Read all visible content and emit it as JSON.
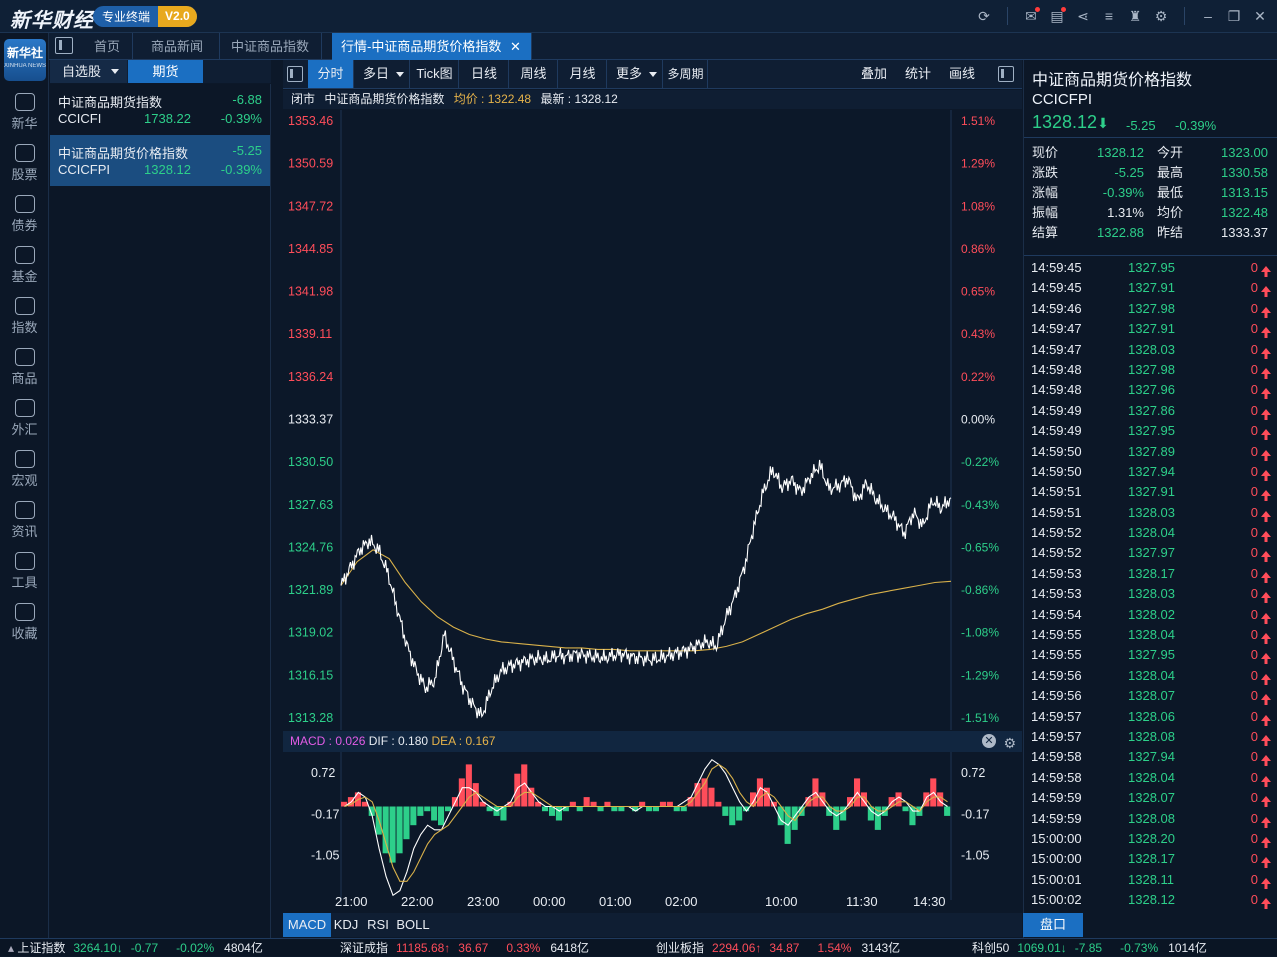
{
  "app": {
    "logo": "新华财经",
    "edition": "专业终端",
    "version": "V2.0"
  },
  "nav": [
    {
      "label": "新华",
      "icon": "xinhua-icon"
    },
    {
      "label": "股票",
      "icon": "stock-chart-icon"
    },
    {
      "label": "债券",
      "icon": "bond-icon"
    },
    {
      "label": "基金",
      "icon": "fund-icon"
    },
    {
      "label": "指数",
      "icon": "index-icon"
    },
    {
      "label": "商品",
      "icon": "commodity-icon"
    },
    {
      "label": "外汇",
      "icon": "dollar-icon"
    },
    {
      "label": "宏观",
      "icon": "macro-icon"
    },
    {
      "label": "资讯",
      "icon": "news-icon"
    },
    {
      "label": "工具",
      "icon": "tool-icon"
    },
    {
      "label": "收藏",
      "icon": "favorite-icon"
    }
  ],
  "nav_logo": {
    "line1": "新华社",
    "line2": "XINHUA NEWS"
  },
  "tabs": [
    "首页",
    "商品新闻",
    "中证商品指数",
    "行情-中证商品期货价格指数"
  ],
  "watchlist_tabs": [
    "自选股",
    "期货"
  ],
  "watchlist": [
    {
      "name": "中证商品期货指数",
      "change": "-6.88",
      "code": "CCICFI",
      "price": "1738.22",
      "pct": "-0.39%"
    },
    {
      "name": "中证商品期货价格指数",
      "change": "-5.25",
      "code": "CCICFPI",
      "price": "1328.12",
      "pct": "-0.39%"
    }
  ],
  "chart_toolbar": {
    "buttons": [
      "分时",
      "多日",
      "Tick图",
      "日线",
      "周线",
      "月线",
      "更多",
      "多周期"
    ],
    "right": [
      "叠加",
      "统计",
      "画线"
    ]
  },
  "chart_info": {
    "status": "闭市",
    "name": "中证商品期货价格指数",
    "avg": "均价 : 1322.48",
    "last": "最新 : 1328.12"
  },
  "macd_info": {
    "macd": "MACD : 0.026",
    "dif": "DIF : 0.180",
    "dea": "DEA : 0.167"
  },
  "indicator_tabs": [
    "MACD",
    "KDJ",
    "RSI",
    "BOLL"
  ],
  "chart_data": {
    "type": "line",
    "prev_close": 1333.37,
    "ylim": [
      1313.28,
      1353.46
    ],
    "y_ticks": [
      "1353.46",
      "1350.59",
      "1347.72",
      "1344.85",
      "1341.98",
      "1339.11",
      "1336.24",
      "1333.37",
      "1330.50",
      "1327.63",
      "1324.76",
      "1321.89",
      "1319.02",
      "1316.15",
      "1313.28"
    ],
    "pct_ticks": [
      "1.51%",
      "1.29%",
      "1.08%",
      "0.86%",
      "0.65%",
      "0.43%",
      "0.22%",
      "0.00%",
      "-0.22%",
      "-0.43%",
      "-0.65%",
      "-0.86%",
      "-1.08%",
      "-1.29%",
      "-1.51%"
    ],
    "x_ticks": [
      "21:00",
      "22:00",
      "23:00",
      "00:00",
      "01:00",
      "02:00",
      "10:00",
      "11:30",
      "14:30"
    ],
    "series": [
      {
        "name": "price",
        "color": "#ffffff",
        "values": [
          1322.2,
          1323.4,
          1324.6,
          1325.2,
          1324.6,
          1323.0,
          1320.6,
          1318.2,
          1316.5,
          1315.3,
          1315.8,
          1318.9,
          1317.1,
          1315.4,
          1314.2,
          1313.4,
          1315.2,
          1316.4,
          1316.8,
          1317.0,
          1317.2,
          1317.3,
          1317.2,
          1317.5,
          1317.4,
          1317.6,
          1317.5,
          1317.4,
          1317.3,
          1317.5,
          1317.6,
          1317.4,
          1317.3,
          1317.2,
          1317.3,
          1317.5,
          1317.7,
          1317.9,
          1318.2,
          1318.4,
          1318.1,
          1320.0,
          1321.5,
          1323.5,
          1326.2,
          1328.5,
          1330.0,
          1328.8,
          1329.3,
          1328.5,
          1329.5,
          1330.3,
          1328.7,
          1328.9,
          1329.4,
          1327.9,
          1329.1,
          1328.0,
          1327.3,
          1326.7,
          1325.7,
          1327.1,
          1326.2,
          1327.9,
          1327.4,
          1328.1
        ]
      },
      {
        "name": "average",
        "color": "#d9b14a",
        "values": [
          1322.2,
          1323.8,
          1324.6,
          1324.0,
          1322.4,
          1321.1,
          1320.1,
          1319.4,
          1318.9,
          1318.6,
          1318.4,
          1318.3,
          1318.2,
          1318.1,
          1318.0,
          1318.0,
          1317.9,
          1317.9,
          1317.8,
          1317.8,
          1317.8,
          1317.8,
          1317.8,
          1317.9,
          1318.1,
          1318.4,
          1318.9,
          1319.4,
          1319.9,
          1320.3,
          1320.6,
          1321.0,
          1321.3,
          1321.6,
          1321.8,
          1322.0,
          1322.2,
          1322.4,
          1322.48
        ]
      }
    ],
    "macd": {
      "y_ticks": [
        "0.72",
        "-0.17",
        "-1.05"
      ],
      "hist": [
        0.1,
        0.2,
        0.3,
        0.1,
        -0.2,
        -0.6,
        -1.0,
        -1.2,
        -1.0,
        -0.7,
        -0.4,
        -0.2,
        -0.1,
        -0.3,
        -0.4,
        -0.1,
        0.2,
        0.6,
        0.9,
        0.5,
        0.1,
        -0.1,
        -0.2,
        -0.3,
        0.1,
        0.7,
        0.9,
        0.4,
        0.1,
        -0.1,
        -0.2,
        -0.3,
        -0.1,
        0.1,
        -0.1,
        0.2,
        0.1,
        -0.1,
        0.1,
        -0.1,
        -0.1,
        0.0,
        -0.1,
        0.1,
        -0.1,
        -0.1,
        0.1,
        0.1,
        -0.1,
        -0.1,
        0.2,
        0.5,
        0.6,
        0.4,
        0.1,
        -0.2,
        -0.4,
        -0.3,
        -0.1,
        0.3,
        0.6,
        0.4,
        0.1,
        -0.4,
        -0.8,
        -0.5,
        -0.2,
        0.2,
        0.6,
        0.3,
        -0.2,
        -0.5,
        -0.3,
        0.2,
        0.6,
        0.3,
        -0.3,
        -0.5,
        -0.2,
        0.2,
        0.3,
        -0.1,
        -0.4,
        -0.2,
        0.3,
        0.6,
        0.3,
        -0.2
      ],
      "dif": [
        0.0,
        0.1,
        0.3,
        0.2,
        -0.2,
        -0.9,
        -1.5,
        -1.9,
        -1.8,
        -1.4,
        -0.9,
        -0.6,
        -0.4,
        -0.5,
        -0.5,
        -0.2,
        0.1,
        0.4,
        0.4,
        0.3,
        0.1,
        0.0,
        -0.1,
        0.0,
        0.1,
        0.4,
        0.5,
        0.3,
        0.1,
        0.0,
        0.0,
        -0.1,
        0.0,
        0.0,
        0.0,
        0.0,
        0.0,
        0.0,
        0.0,
        0.0,
        0.0,
        0.0,
        -0.1,
        0.0,
        0.0,
        0.0,
        0.0,
        0.0,
        0.0,
        0.1,
        0.2,
        0.5,
        0.8,
        1.0,
        0.9,
        0.7,
        0.4,
        0.1,
        -0.1,
        0.1,
        0.4,
        0.3,
        0.0,
        -0.3,
        -0.4,
        -0.2,
        0.0,
        0.2,
        0.3,
        0.1,
        -0.1,
        -0.2,
        -0.1,
        0.1,
        0.3,
        0.1,
        -0.1,
        -0.2,
        -0.1,
        0.1,
        0.2,
        0.1,
        -0.1,
        -0.1,
        0.2,
        0.3,
        0.1,
        0.0
      ],
      "dea": [
        0.0,
        0.05,
        0.15,
        0.2,
        0.1,
        -0.3,
        -0.8,
        -1.3,
        -1.6,
        -1.6,
        -1.4,
        -1.1,
        -0.8,
        -0.6,
        -0.5,
        -0.4,
        -0.2,
        0.0,
        0.2,
        0.3,
        0.2,
        0.1,
        0.0,
        0.0,
        0.0,
        0.2,
        0.3,
        0.3,
        0.2,
        0.1,
        0.0,
        0.0,
        0.0,
        0.0,
        0.0,
        0.0,
        0.0,
        0.0,
        0.0,
        0.0,
        0.0,
        0.0,
        0.0,
        0.0,
        0.0,
        0.0,
        0.0,
        0.0,
        0.0,
        0.0,
        0.1,
        0.3,
        0.5,
        0.8,
        0.9,
        0.8,
        0.6,
        0.3,
        0.1,
        0.0,
        0.2,
        0.3,
        0.2,
        0.0,
        -0.2,
        -0.3,
        -0.1,
        0.1,
        0.2,
        0.2,
        0.0,
        -0.1,
        -0.1,
        0.0,
        0.2,
        0.2,
        0.0,
        -0.1,
        -0.1,
        0.0,
        0.1,
        0.1,
        0.0,
        -0.1,
        0.1,
        0.2,
        0.2,
        0.1
      ]
    }
  },
  "quote": {
    "name": "中证商品期货价格指数",
    "code": "CCICFPI",
    "price": "1328.12",
    "change": "-5.25",
    "pct": "-0.39%",
    "stats": [
      {
        "label": "现价",
        "value": "1328.12",
        "cls": "dn"
      },
      {
        "label": "今开",
        "value": "1323.00",
        "cls": "dn"
      },
      {
        "label": "涨跌",
        "value": "-5.25",
        "cls": "dn"
      },
      {
        "label": "最高",
        "value": "1330.58",
        "cls": "dn"
      },
      {
        "label": "涨幅",
        "value": "-0.39%",
        "cls": "dn"
      },
      {
        "label": "最低",
        "value": "1313.15",
        "cls": "dn"
      },
      {
        "label": "振幅",
        "value": "1.31%",
        "cls": "neu"
      },
      {
        "label": "均价",
        "value": "1322.48",
        "cls": "dn"
      },
      {
        "label": "结算",
        "value": "1322.88",
        "cls": "dn"
      },
      {
        "label": "昨结",
        "value": "1333.37",
        "cls": "neu"
      }
    ]
  },
  "ticks": [
    {
      "time": "14:59:45",
      "price": "1327.95",
      "vol": "0"
    },
    {
      "time": "14:59:45",
      "price": "1327.91",
      "vol": "0"
    },
    {
      "time": "14:59:46",
      "price": "1327.98",
      "vol": "0"
    },
    {
      "time": "14:59:47",
      "price": "1327.91",
      "vol": "0"
    },
    {
      "time": "14:59:47",
      "price": "1328.03",
      "vol": "0"
    },
    {
      "time": "14:59:48",
      "price": "1327.98",
      "vol": "0"
    },
    {
      "time": "14:59:48",
      "price": "1327.96",
      "vol": "0"
    },
    {
      "time": "14:59:49",
      "price": "1327.86",
      "vol": "0"
    },
    {
      "time": "14:59:49",
      "price": "1327.95",
      "vol": "0"
    },
    {
      "time": "14:59:50",
      "price": "1327.89",
      "vol": "0"
    },
    {
      "time": "14:59:50",
      "price": "1327.94",
      "vol": "0"
    },
    {
      "time": "14:59:51",
      "price": "1327.91",
      "vol": "0"
    },
    {
      "time": "14:59:51",
      "price": "1328.03",
      "vol": "0"
    },
    {
      "time": "14:59:52",
      "price": "1328.04",
      "vol": "0"
    },
    {
      "time": "14:59:52",
      "price": "1327.97",
      "vol": "0"
    },
    {
      "time": "14:59:53",
      "price": "1328.17",
      "vol": "0"
    },
    {
      "time": "14:59:53",
      "price": "1328.03",
      "vol": "0"
    },
    {
      "time": "14:59:54",
      "price": "1328.02",
      "vol": "0"
    },
    {
      "time": "14:59:55",
      "price": "1328.04",
      "vol": "0"
    },
    {
      "time": "14:59:55",
      "price": "1327.95",
      "vol": "0"
    },
    {
      "time": "14:59:56",
      "price": "1328.04",
      "vol": "0"
    },
    {
      "time": "14:59:56",
      "price": "1328.07",
      "vol": "0"
    },
    {
      "time": "14:59:57",
      "price": "1328.06",
      "vol": "0"
    },
    {
      "time": "14:59:57",
      "price": "1328.08",
      "vol": "0"
    },
    {
      "time": "14:59:58",
      "price": "1327.94",
      "vol": "0"
    },
    {
      "time": "14:59:58",
      "price": "1328.04",
      "vol": "0"
    },
    {
      "time": "14:59:59",
      "price": "1328.07",
      "vol": "0"
    },
    {
      "time": "14:59:59",
      "price": "1328.08",
      "vol": "0"
    },
    {
      "time": "15:00:00",
      "price": "1328.20",
      "vol": "0"
    },
    {
      "time": "15:00:00",
      "price": "1328.17",
      "vol": "0"
    },
    {
      "time": "15:00:01",
      "price": "1328.11",
      "vol": "0"
    },
    {
      "time": "15:00:02",
      "price": "1328.12",
      "vol": "0"
    }
  ],
  "pankou_label": "盘口",
  "status_bar": [
    {
      "name": "上证指数",
      "price": "3264.10",
      "change": "-0.77",
      "pct": "-0.02%",
      "amount": "4804亿",
      "dir": "dn"
    },
    {
      "name": "深证成指",
      "price": "11185.68",
      "change": "36.67",
      "pct": "0.33%",
      "amount": "6418亿",
      "dir": "up"
    },
    {
      "name": "创业板指",
      "price": "2294.06",
      "change": "34.87",
      "pct": "1.54%",
      "amount": "3143亿",
      "dir": "up"
    },
    {
      "name": "科创50",
      "price": "1069.01",
      "change": "-7.85",
      "pct": "-0.73%",
      "amount": "1014亿",
      "dir": "dn"
    }
  ],
  "colors": {
    "up": "#ff4d5a",
    "down": "#2dcf8a",
    "accent": "#1b6fc2",
    "avg_line": "#d9b14a"
  }
}
